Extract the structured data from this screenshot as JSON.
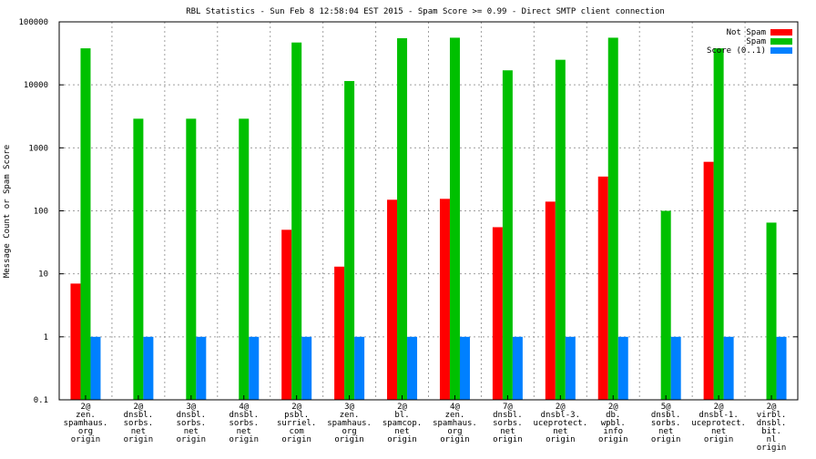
{
  "chart_data": {
    "type": "bar",
    "title": "RBL Statistics - Sun Feb  8 12:58:04 EST 2015 - Spam Score >= 0.99 - Direct SMTP client connection",
    "xlabel": "",
    "ylabel": "Message Count or Spam Score",
    "scale": "log",
    "ylim": [
      0.1,
      100000
    ],
    "yticks": [
      "0.1",
      "1",
      "10",
      "100",
      "1000",
      "10000",
      "100000"
    ],
    "grid": true,
    "legend_position": "top-right",
    "categories": [
      [
        "2@",
        "zen.",
        "spamhaus.",
        "org",
        "origin"
      ],
      [
        "2@",
        "dnsbl.",
        "sorbs.",
        "net",
        "origin"
      ],
      [
        "3@",
        "dnsbl.",
        "sorbs.",
        "net",
        "origin"
      ],
      [
        "4@",
        "dnsbl.",
        "sorbs.",
        "net",
        "origin"
      ],
      [
        "2@",
        "psbl.",
        "surriel.",
        "com",
        "origin"
      ],
      [
        "3@",
        "zen.",
        "spamhaus.",
        "org",
        "origin"
      ],
      [
        "2@",
        "bl.",
        "spamcop.",
        "net",
        "origin"
      ],
      [
        "4@",
        "zen.",
        "spamhaus.",
        "org",
        "origin"
      ],
      [
        "7@",
        "dnsbl.",
        "sorbs.",
        "net",
        "origin"
      ],
      [
        "2@",
        "dnsbl-3.",
        "uceprotect.",
        "net",
        "origin"
      ],
      [
        "2@",
        "db.",
        "wpbl.",
        "info",
        "origin"
      ],
      [
        "5@",
        "dnsbl.",
        "sorbs.",
        "net",
        "origin"
      ],
      [
        "2@",
        "dnsbl-1.",
        "uceprotect.",
        "net",
        "origin"
      ],
      [
        "2@",
        "virbl.",
        "dnsbl.",
        "bit.",
        "nl",
        "origin"
      ]
    ],
    "series": [
      {
        "name": "Not Spam",
        "color": "#ff0000",
        "values": [
          7,
          null,
          null,
          null,
          50,
          13,
          150,
          155,
          55,
          140,
          350,
          null,
          600,
          null
        ]
      },
      {
        "name": "Spam",
        "color": "#00c000",
        "values": [
          38000,
          2900,
          2900,
          2900,
          47000,
          11500,
          55000,
          56000,
          17000,
          25000,
          56000,
          100,
          38000,
          65
        ]
      },
      {
        "name": "Score (0..1)",
        "color": "#0080ff",
        "values": [
          1,
          1,
          1,
          1,
          1,
          1,
          1,
          1,
          1,
          1,
          1,
          1,
          1,
          1
        ]
      }
    ]
  }
}
